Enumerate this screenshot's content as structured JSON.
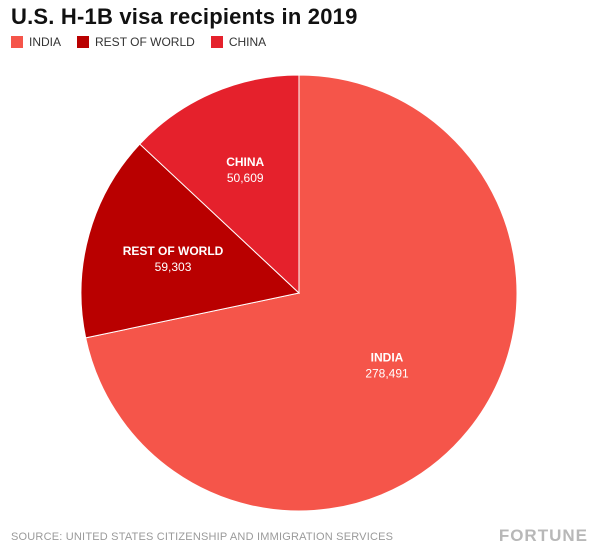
{
  "title": "U.S. H-1B visa recipients in 2019",
  "footer": {
    "source": "SOURCE: UNITED STATES CITIZENSHIP AND IMMIGRATION SERVICES",
    "brand": "FORTUNE"
  },
  "colors": {
    "india": "#f5554a",
    "rest_of_world": "#b90000",
    "china": "#e5212c"
  },
  "chart_data": {
    "type": "pie",
    "title": "U.S. H-1B visa recipients in 2019",
    "legend_placement": "top-left",
    "slices": [
      {
        "name": "INDIA",
        "value": 278491,
        "label": "INDIA",
        "value_label": "278,491",
        "color": "#f5554a"
      },
      {
        "name": "REST OF WORLD",
        "value": 59303,
        "label": "REST OF WORLD",
        "value_label": "59,303",
        "color": "#b90000"
      },
      {
        "name": "CHINA",
        "value": 50609,
        "label": "CHINA",
        "value_label": "50,609",
        "color": "#e5212c"
      }
    ],
    "legend": [
      "INDIA",
      "REST OF WORLD",
      "CHINA"
    ]
  }
}
